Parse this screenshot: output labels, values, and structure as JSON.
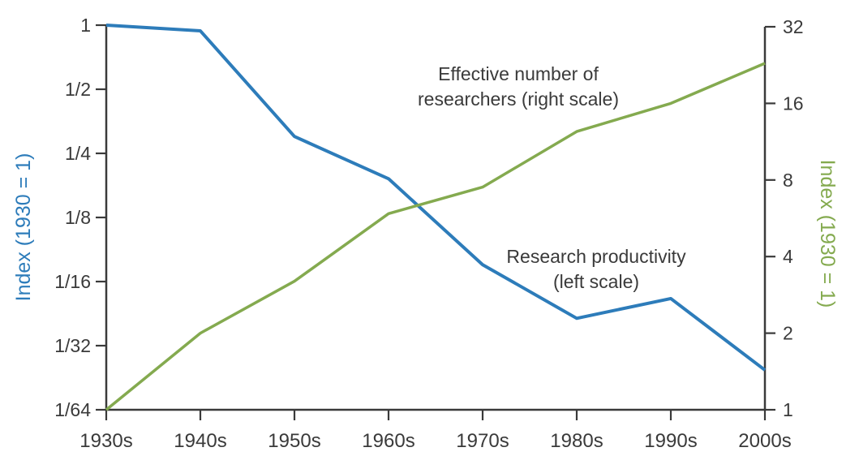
{
  "figure": {
    "background": "#ffffff",
    "text_color": "#3a3a3a"
  },
  "chart_data": {
    "type": "line",
    "categories": [
      "1930s",
      "1940s",
      "1950s",
      "1960s",
      "1970s",
      "1980s",
      "1990s",
      "2000s"
    ],
    "series": [
      {
        "name": "Research productivity",
        "axis": "left",
        "color": "#2d7cba",
        "stroke_width": 4,
        "values": [
          1,
          0.94,
          0.3,
          0.19,
          0.075,
          0.042,
          0.052,
          0.024
        ]
      },
      {
        "name": "Effective number of researchers",
        "axis": "right",
        "color": "#84aa4f",
        "stroke_width": 3.5,
        "values": [
          1,
          2.0,
          3.2,
          5.9,
          7.5,
          12.4,
          16,
          23
        ]
      }
    ],
    "left_axis": {
      "title": "Index (1930 = 1)",
      "color": "#2d7cba",
      "scale": "log2",
      "range": [
        0.015625,
        1
      ],
      "ticks": [
        {
          "label": "1",
          "value": 1
        },
        {
          "label": "1/2",
          "value": 0.5
        },
        {
          "label": "1/4",
          "value": 0.25
        },
        {
          "label": "1/8",
          "value": 0.125
        },
        {
          "label": "1/16",
          "value": 0.0625
        },
        {
          "label": "1/32",
          "value": 0.03125
        },
        {
          "label": "1/64",
          "value": 0.015625
        }
      ]
    },
    "right_axis": {
      "title": "Index (1930 = 1)",
      "color": "#84aa4f",
      "scale": "log2",
      "range": [
        1,
        32
      ],
      "ticks": [
        {
          "label": "32",
          "value": 32
        },
        {
          "label": "16",
          "value": 16
        },
        {
          "label": "8",
          "value": 8
        },
        {
          "label": "4",
          "value": 4
        },
        {
          "label": "2",
          "value": 2
        },
        {
          "label": "1",
          "value": 1
        }
      ]
    },
    "x_axis": {
      "tick_labels": [
        "1930s",
        "1940s",
        "1950s",
        "1960s",
        "1970s",
        "1980s",
        "1990s",
        "2000s"
      ]
    },
    "annotations": [
      {
        "id": "researchers-label",
        "lines": [
          "Effective number of",
          "researchers (right scale)"
        ],
        "x": 639,
        "y": 91,
        "color": "#3a3a3a"
      },
      {
        "id": "productivity-label",
        "lines": [
          "Research productivity",
          "(left scale)"
        ],
        "x": 735,
        "y": 316,
        "color": "#3a3a3a"
      }
    ],
    "grid": false,
    "legend_position": "none",
    "axis_color": "#3a3a3a"
  }
}
